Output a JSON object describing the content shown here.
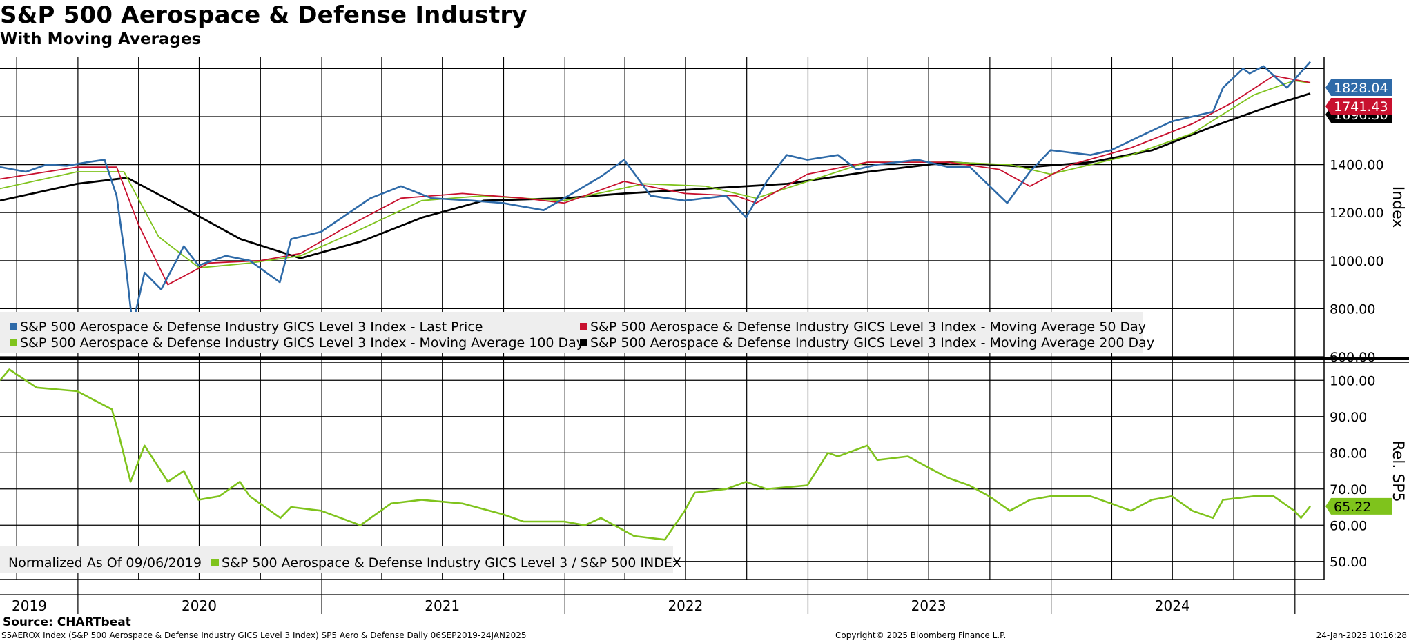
{
  "header": {
    "title": "S&P 500 Aerospace & Defense Industry",
    "subtitle": "With Moving Averages"
  },
  "footer": {
    "source": "Source: CHARTbeat",
    "description": "S5AEROX Index (S&P 500 Aerospace & Defense Industry GICS Level 3 Index) SP5 Aero & Defense  Daily 06SEP2019-24JAN2025",
    "copyright": "Copyright© 2025 Bloomberg Finance L.P.",
    "timestamp": "24-Jan-2025 10:16:28"
  },
  "colors": {
    "last_price": "#2e6aa8",
    "ma50": "#c8102e",
    "ma100": "#7fc31c",
    "ma200": "#000000",
    "relative": "#7fc31c",
    "legend_bg": "#eeeeee",
    "grid": "#000000"
  },
  "chart_data": [
    {
      "type": "line",
      "panel": "upper",
      "ylabel": "Index",
      "ylim": [
        600,
        1850
      ],
      "yticks": [
        "600.00",
        "800.00",
        "1000.00",
        "1200.00",
        "1400.00",
        "1600.00"
      ],
      "x_range": [
        "2019-09-06",
        "2025-01-24"
      ],
      "x_year_labels": [
        "2019",
        "2020",
        "2021",
        "2022",
        "2023",
        "2024"
      ],
      "last_values": [
        {
          "series": "Last Price",
          "label": "1828.04",
          "color": "#2e6aa8"
        },
        {
          "series": "Moving Average 50 Day",
          "label": "1741.43",
          "color": "#c8102e"
        },
        {
          "series": "Moving Average 200 Day",
          "label": "1696.30",
          "color": "#000000"
        }
      ],
      "legend": [
        "S&P 500 Aerospace & Defense Industry GICS Level 3 Index - Last Price",
        "S&P 500 Aerospace & Defense Industry GICS Level 3 Index - Moving Average 50 Day",
        "S&P 500 Aerospace & Defense Industry GICS Level 3 Index - Moving Average 100 Day",
        "S&P 500 Aerospace & Defense Industry GICS Level 3 Index - Moving Average 200 Day"
      ],
      "series": [
        {
          "name": "Last Price",
          "color": "#2e6aa8",
          "points": [
            [
              "2019-09-06",
              1390
            ],
            [
              "2019-10-15",
              1370
            ],
            [
              "2019-11-15",
              1400
            ],
            [
              "2019-12-15",
              1395
            ],
            [
              "2020-01-15",
              1410
            ],
            [
              "2020-02-10",
              1420
            ],
            [
              "2020-02-28",
              1270
            ],
            [
              "2020-03-10",
              1050
            ],
            [
              "2020-03-23",
              730
            ],
            [
              "2020-04-10",
              950
            ],
            [
              "2020-05-05",
              880
            ],
            [
              "2020-06-08",
              1060
            ],
            [
              "2020-06-30",
              980
            ],
            [
              "2020-08-10",
              1020
            ],
            [
              "2020-09-15",
              1000
            ],
            [
              "2020-10-30",
              910
            ],
            [
              "2020-11-16",
              1090
            ],
            [
              "2020-12-31",
              1120
            ],
            [
              "2021-03-15",
              1260
            ],
            [
              "2021-04-30",
              1310
            ],
            [
              "2021-06-15",
              1260
            ],
            [
              "2021-08-15",
              1250
            ],
            [
              "2021-09-30",
              1240
            ],
            [
              "2021-11-30",
              1210
            ],
            [
              "2021-12-31",
              1260
            ],
            [
              "2022-02-24",
              1350
            ],
            [
              "2022-03-31",
              1420
            ],
            [
              "2022-05-10",
              1270
            ],
            [
              "2022-06-30",
              1250
            ],
            [
              "2022-08-31",
              1270
            ],
            [
              "2022-09-30",
              1180
            ],
            [
              "2022-10-31",
              1330
            ],
            [
              "2022-11-30",
              1440
            ],
            [
              "2022-12-31",
              1420
            ],
            [
              "2023-02-15",
              1440
            ],
            [
              "2023-03-15",
              1380
            ],
            [
              "2023-04-15",
              1400
            ],
            [
              "2023-06-15",
              1420
            ],
            [
              "2023-07-31",
              1390
            ],
            [
              "2023-09-01",
              1390
            ],
            [
              "2023-10-27",
              1240
            ],
            [
              "2023-11-30",
              1370
            ],
            [
              "2023-12-31",
              1460
            ],
            [
              "2024-02-29",
              1440
            ],
            [
              "2024-03-31",
              1460
            ],
            [
              "2024-05-15",
              1520
            ],
            [
              "2024-06-30",
              1580
            ],
            [
              "2024-07-31",
              1600
            ],
            [
              "2024-08-31",
              1620
            ],
            [
              "2024-09-15",
              1720
            ],
            [
              "2024-10-15",
              1800
            ],
            [
              "2024-10-25",
              1780
            ],
            [
              "2024-11-15",
              1810
            ],
            [
              "2024-12-20",
              1720
            ],
            [
              "2025-01-24",
              1828.04
            ]
          ]
        },
        {
          "name": "Moving Average 50 Day",
          "color": "#c8102e",
          "points": [
            [
              "2019-09-06",
              1340
            ],
            [
              "2019-12-31",
              1390
            ],
            [
              "2020-02-28",
              1390
            ],
            [
              "2020-04-01",
              1150
            ],
            [
              "2020-05-15",
              900
            ],
            [
              "2020-07-15",
              990
            ],
            [
              "2020-10-01",
              1000
            ],
            [
              "2020-11-30",
              1030
            ],
            [
              "2021-01-31",
              1130
            ],
            [
              "2021-04-30",
              1260
            ],
            [
              "2021-07-31",
              1280
            ],
            [
              "2021-10-31",
              1260
            ],
            [
              "2021-12-31",
              1240
            ],
            [
              "2022-03-31",
              1330
            ],
            [
              "2022-06-30",
              1280
            ],
            [
              "2022-09-15",
              1270
            ],
            [
              "2022-10-15",
              1240
            ],
            [
              "2022-12-31",
              1360
            ],
            [
              "2023-03-31",
              1410
            ],
            [
              "2023-07-31",
              1410
            ],
            [
              "2023-10-15",
              1380
            ],
            [
              "2023-11-30",
              1310
            ],
            [
              "2024-01-31",
              1400
            ],
            [
              "2024-04-30",
              1470
            ],
            [
              "2024-07-31",
              1570
            ],
            [
              "2024-09-30",
              1660
            ],
            [
              "2024-11-30",
              1770
            ],
            [
              "2025-01-24",
              1741.43
            ]
          ]
        },
        {
          "name": "Moving Average 100 Day",
          "color": "#7fc31c",
          "points": [
            [
              "2019-09-06",
              1300
            ],
            [
              "2019-12-31",
              1370
            ],
            [
              "2020-03-10",
              1370
            ],
            [
              "2020-05-01",
              1100
            ],
            [
              "2020-07-01",
              970
            ],
            [
              "2020-09-15",
              990
            ],
            [
              "2020-11-30",
              1020
            ],
            [
              "2021-02-28",
              1130
            ],
            [
              "2021-05-31",
              1250
            ],
            [
              "2021-08-31",
              1270
            ],
            [
              "2021-12-31",
              1250
            ],
            [
              "2022-04-30",
              1320
            ],
            [
              "2022-07-31",
              1310
            ],
            [
              "2022-10-15",
              1260
            ],
            [
              "2022-12-31",
              1330
            ],
            [
              "2023-03-31",
              1410
            ],
            [
              "2023-07-31",
              1410
            ],
            [
              "2023-10-31",
              1400
            ],
            [
              "2023-12-31",
              1360
            ],
            [
              "2024-04-30",
              1440
            ],
            [
              "2024-07-31",
              1530
            ],
            [
              "2024-10-31",
              1690
            ],
            [
              "2024-12-31",
              1750
            ],
            [
              "2025-01-24",
              1740
            ]
          ]
        },
        {
          "name": "Moving Average 200 Day",
          "color": "#000000",
          "points": [
            [
              "2019-09-06",
              1250
            ],
            [
              "2019-12-31",
              1320
            ],
            [
              "2020-03-15",
              1345
            ],
            [
              "2020-06-01",
              1230
            ],
            [
              "2020-09-01",
              1090
            ],
            [
              "2020-11-30",
              1010
            ],
            [
              "2021-03-01",
              1080
            ],
            [
              "2021-06-01",
              1180
            ],
            [
              "2021-09-01",
              1250
            ],
            [
              "2021-12-31",
              1260
            ],
            [
              "2022-04-01",
              1280
            ],
            [
              "2022-08-01",
              1300
            ],
            [
              "2022-12-01",
              1320
            ],
            [
              "2023-04-01",
              1370
            ],
            [
              "2023-08-01",
              1410
            ],
            [
              "2023-12-01",
              1390
            ],
            [
              "2024-03-01",
              1410
            ],
            [
              "2024-06-01",
              1460
            ],
            [
              "2024-09-01",
              1560
            ],
            [
              "2024-12-01",
              1650
            ],
            [
              "2025-01-24",
              1696.3
            ]
          ]
        }
      ]
    },
    {
      "type": "line",
      "panel": "lower",
      "ylabel": "Rel. SP5",
      "ylim": [
        45,
        105
      ],
      "yticks": [
        "50.00",
        "60.00",
        "70.00",
        "80.00",
        "90.00",
        "100.00"
      ],
      "last_value_label": "65.22",
      "legend": [
        "Normalized As Of 09/06/2019",
        "S&P 500 Aerospace & Defense Industry GICS Level 3 / S&P 500 INDEX"
      ],
      "series": [
        {
          "name": "S&P 500 Aerospace & Defense Industry GICS Level 3 / S&P 500 INDEX",
          "color": "#7fc31c",
          "points": [
            [
              "2019-09-06",
              100
            ],
            [
              "2019-09-20",
              103
            ],
            [
              "2019-10-31",
              98
            ],
            [
              "2019-12-31",
              97
            ],
            [
              "2020-01-31",
              94
            ],
            [
              "2020-02-21",
              92
            ],
            [
              "2020-03-01",
              86
            ],
            [
              "2020-03-20",
              72
            ],
            [
              "2020-04-10",
              82
            ],
            [
              "2020-05-15",
              72
            ],
            [
              "2020-06-08",
              75
            ],
            [
              "2020-06-30",
              67
            ],
            [
              "2020-07-31",
              68
            ],
            [
              "2020-08-31",
              72
            ],
            [
              "2020-09-15",
              68
            ],
            [
              "2020-10-31",
              62
            ],
            [
              "2020-11-16",
              65
            ],
            [
              "2020-12-31",
              64
            ],
            [
              "2021-02-28",
              60
            ],
            [
              "2021-04-15",
              66
            ],
            [
              "2021-05-31",
              67
            ],
            [
              "2021-07-31",
              66
            ],
            [
              "2021-09-30",
              63
            ],
            [
              "2021-10-31",
              61
            ],
            [
              "2021-12-31",
              61
            ],
            [
              "2022-01-31",
              60
            ],
            [
              "2022-02-24",
              62
            ],
            [
              "2022-04-15",
              57
            ],
            [
              "2022-05-31",
              56
            ],
            [
              "2022-06-30",
              64
            ],
            [
              "2022-07-15",
              69
            ],
            [
              "2022-08-31",
              70
            ],
            [
              "2022-09-30",
              72
            ],
            [
              "2022-10-31",
              70
            ],
            [
              "2022-12-31",
              71
            ],
            [
              "2023-01-31",
              80
            ],
            [
              "2023-02-15",
              79
            ],
            [
              "2023-03-31",
              82
            ],
            [
              "2023-04-15",
              78
            ],
            [
              "2023-05-31",
              79
            ],
            [
              "2023-06-30",
              76
            ],
            [
              "2023-07-31",
              73
            ],
            [
              "2023-08-31",
              71
            ],
            [
              "2023-09-30",
              68
            ],
            [
              "2023-10-31",
              64
            ],
            [
              "2023-11-30",
              67
            ],
            [
              "2023-12-31",
              68
            ],
            [
              "2024-02-29",
              68
            ],
            [
              "2024-03-31",
              66
            ],
            [
              "2024-04-30",
              64
            ],
            [
              "2024-05-31",
              67
            ],
            [
              "2024-06-30",
              68
            ],
            [
              "2024-07-31",
              64
            ],
            [
              "2024-08-31",
              62
            ],
            [
              "2024-09-15",
              67
            ],
            [
              "2024-10-31",
              68
            ],
            [
              "2024-11-30",
              68
            ],
            [
              "2024-12-31",
              64
            ],
            [
              "2025-01-10",
              62
            ],
            [
              "2025-01-24",
              65.22
            ]
          ]
        }
      ]
    }
  ]
}
